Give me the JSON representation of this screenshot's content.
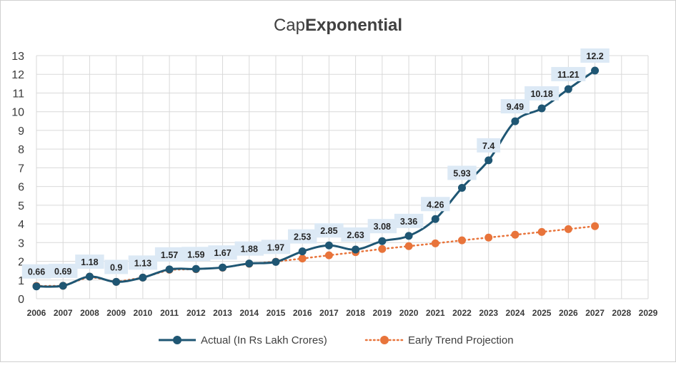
{
  "chart_data": {
    "type": "line",
    "title_prefix": "Cap",
    "title_emphasis": "Exponential",
    "categories": [
      "2006",
      "2007",
      "2008",
      "2009",
      "2010",
      "2011",
      "2012",
      "2013",
      "2014",
      "2015",
      "2016",
      "2017",
      "2018",
      "2019",
      "2020",
      "2021",
      "2022",
      "2023",
      "2024",
      "2025",
      "2026",
      "2027",
      "2028",
      "2029"
    ],
    "y_ticks": [
      "0",
      "1",
      "2",
      "3",
      "4",
      "5",
      "6",
      "7",
      "8",
      "9",
      "10",
      "11",
      "12",
      "13"
    ],
    "ylim": [
      0,
      13
    ],
    "grid": true,
    "legend_position": "bottom",
    "series": [
      {
        "name": "Actual (In Rs Lakh Crores)",
        "color": "#1f5673",
        "style": "solid-smooth",
        "labels_visible": true,
        "values": [
          0.66,
          0.69,
          1.18,
          0.9,
          1.13,
          1.57,
          1.59,
          1.67,
          1.88,
          1.97,
          2.53,
          2.85,
          2.63,
          3.08,
          3.36,
          4.26,
          5.93,
          7.4,
          9.49,
          10.18,
          11.21,
          12.2,
          null,
          null
        ],
        "data_labels": [
          "0.66",
          "0.69",
          "1.18",
          "0.9",
          "1.13",
          "1.57",
          "1.59",
          "1.67",
          "1.88",
          "1.97",
          "2.53",
          "2.85",
          "2.63",
          "3.08",
          "3.36",
          "4.26",
          "5.93",
          "7.4",
          "9.49",
          "10.18",
          "11.21",
          "12.2",
          null,
          null
        ]
      },
      {
        "name": "Early Trend Projection",
        "color": "#e8743b",
        "style": "dotted",
        "labels_visible": false,
        "values": [
          0.68,
          0.69,
          1.18,
          0.9,
          1.13,
          1.55,
          1.58,
          1.66,
          1.87,
          1.98,
          2.15,
          2.32,
          2.49,
          2.66,
          2.81,
          2.96,
          3.12,
          3.27,
          3.42,
          3.57,
          3.72,
          3.88,
          null,
          null
        ]
      }
    ]
  },
  "label_bg": "#dce9f5",
  "grid_color": "#d9d9d9"
}
